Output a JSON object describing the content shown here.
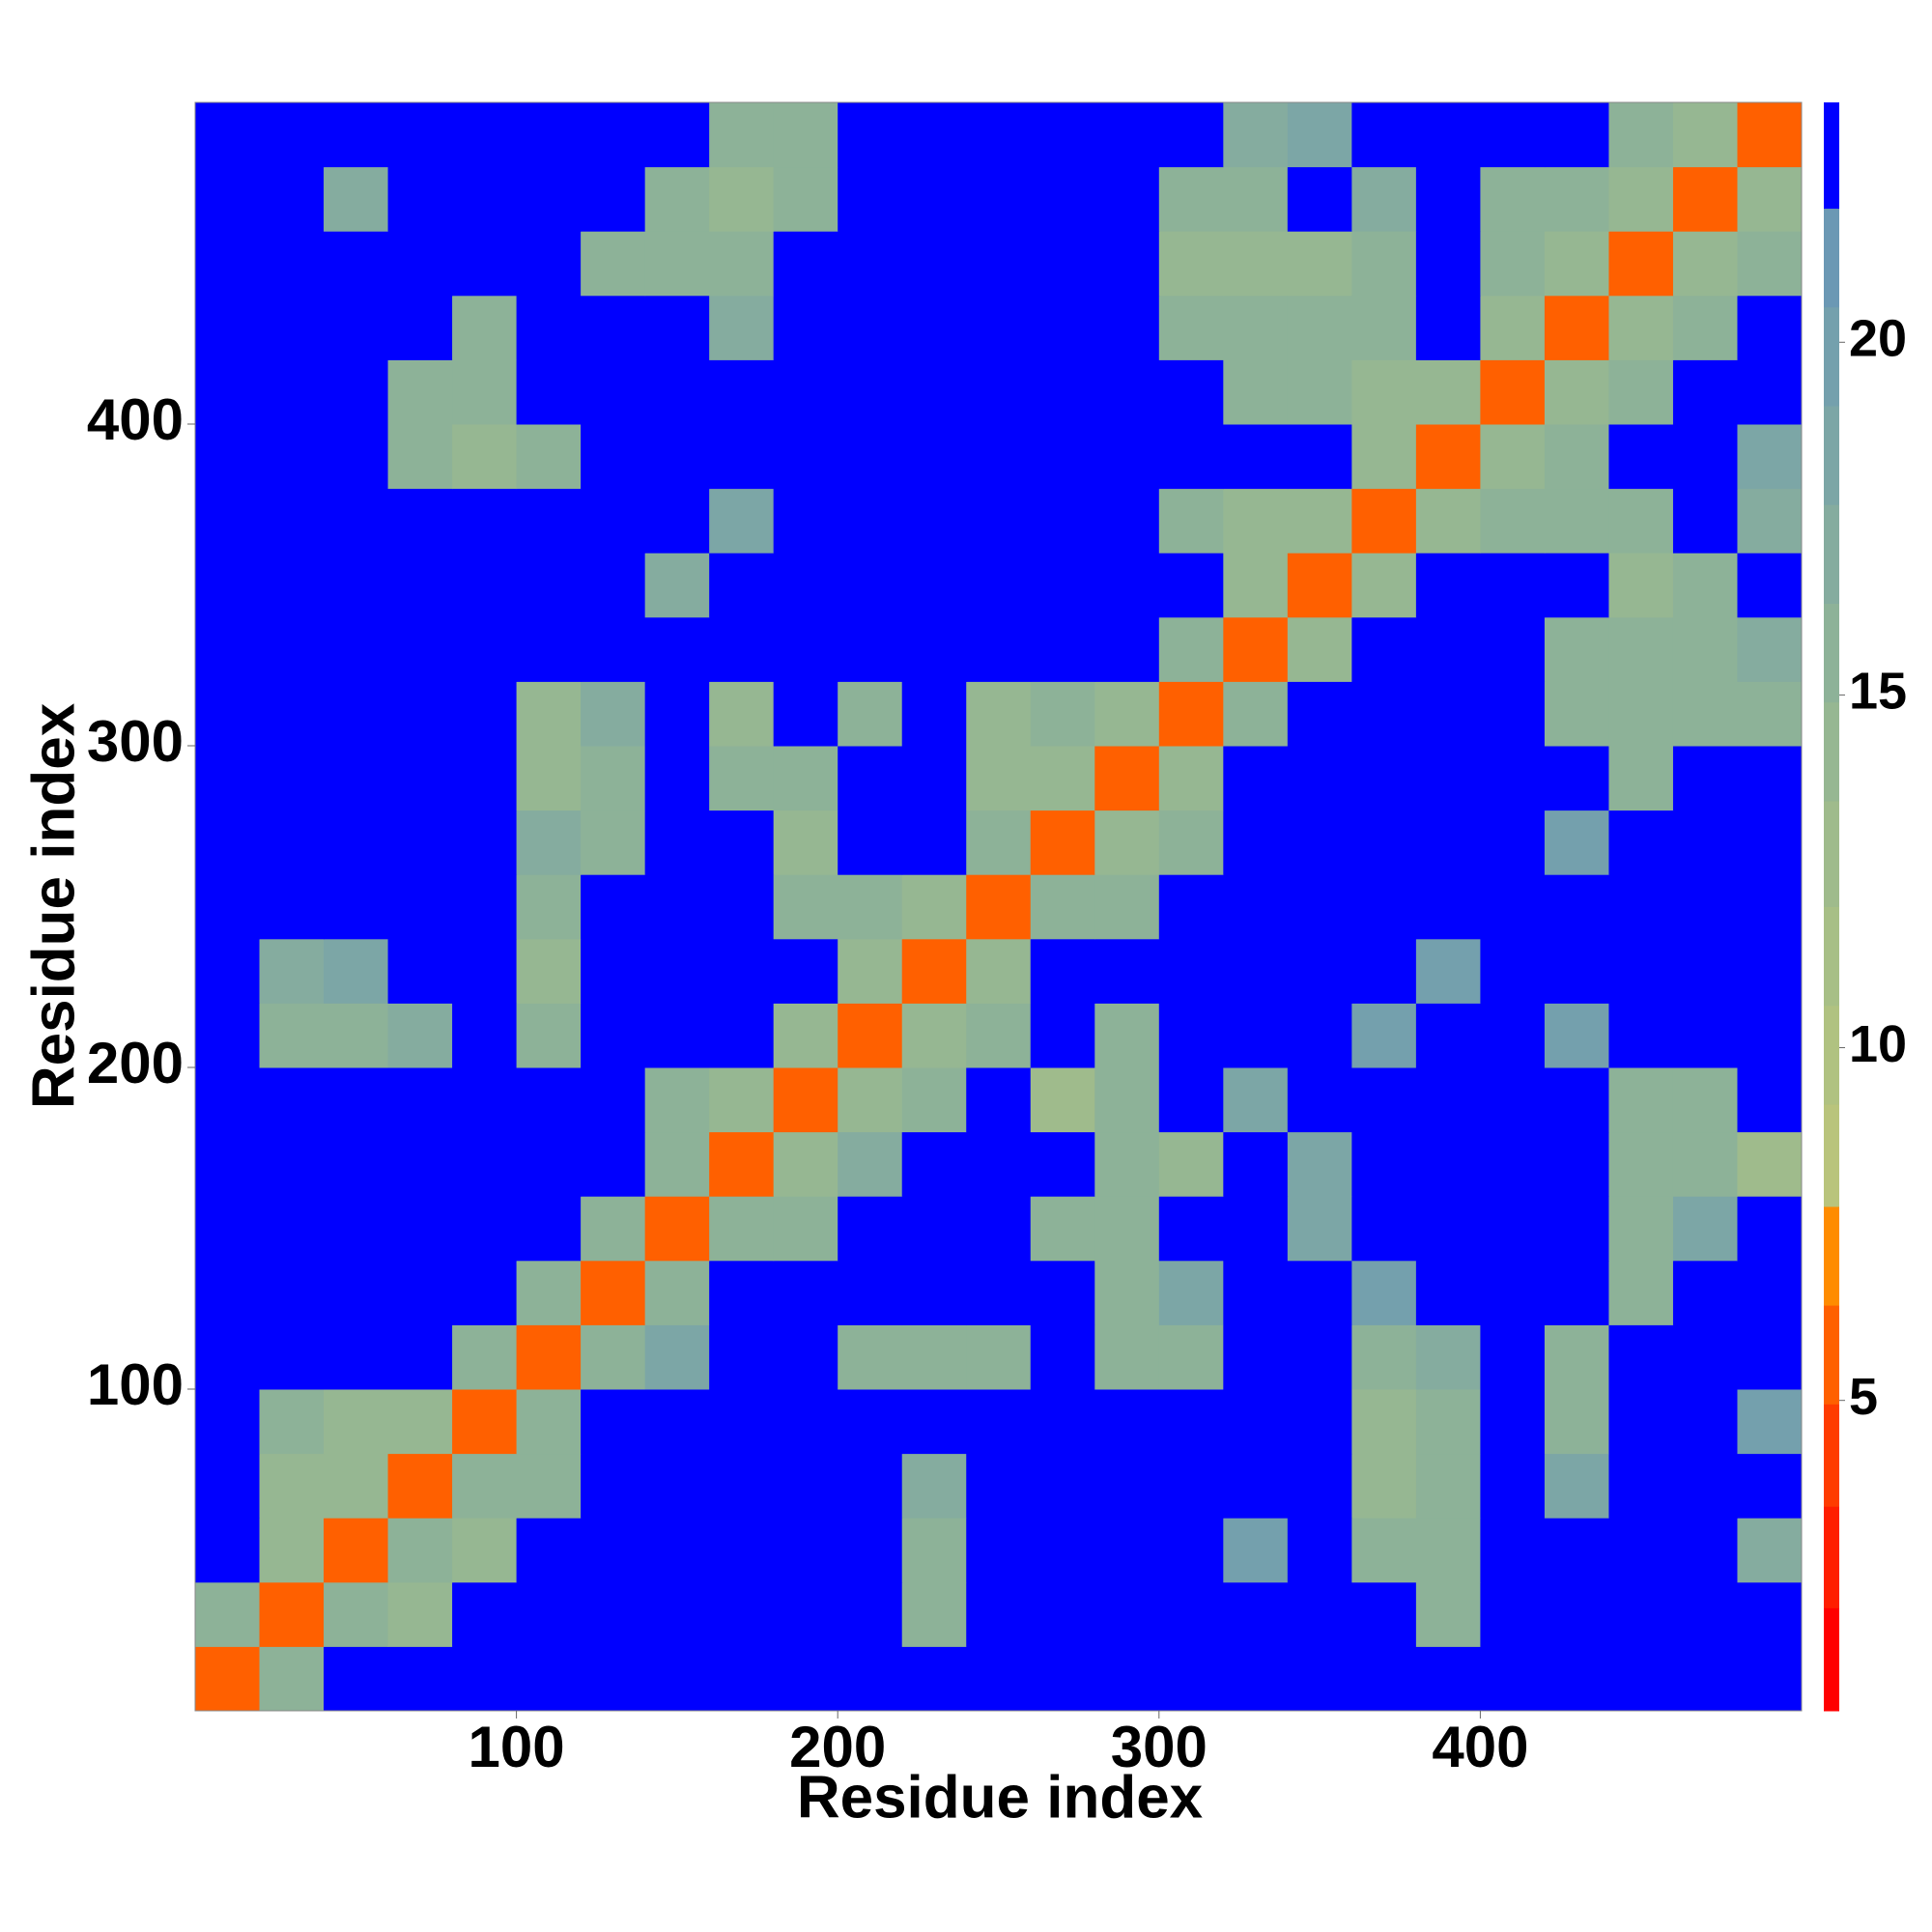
{
  "chart_data": {
    "type": "heatmap",
    "xlabel": "Residue index",
    "ylabel": "Residue index",
    "x_bins": [
      0,
      20,
      40,
      60,
      80,
      100,
      120,
      140,
      160,
      180,
      200,
      220,
      240,
      260,
      280,
      300,
      320,
      340,
      360,
      380,
      400,
      420,
      440,
      460,
      480,
      500
    ],
    "y_bins": [
      0,
      20,
      40,
      60,
      80,
      100,
      120,
      140,
      160,
      180,
      200,
      220,
      240,
      260,
      280,
      300,
      320,
      340,
      360,
      380,
      400,
      420,
      440,
      460,
      480,
      500
    ],
    "xlim": [
      0,
      500
    ],
    "ylim": [
      0,
      500
    ],
    "xticks": [
      100,
      200,
      300,
      400
    ],
    "yticks": [
      100,
      200,
      300,
      400
    ],
    "z": [
      [
        5,
        15,
        23,
        23,
        23,
        23,
        23,
        23,
        23,
        23,
        23,
        23,
        23,
        23,
        23,
        23,
        23,
        23,
        23,
        23,
        23,
        23,
        23,
        23,
        23
      ],
      [
        15,
        5,
        15,
        14,
        23,
        23,
        23,
        23,
        23,
        23,
        23,
        16,
        23,
        23,
        23,
        23,
        23,
        23,
        23,
        16,
        23,
        23,
        23,
        23,
        23
      ],
      [
        23,
        14,
        5,
        15,
        14,
        23,
        23,
        23,
        23,
        23,
        23,
        15,
        23,
        23,
        23,
        23,
        20,
        23,
        16,
        15,
        23,
        23,
        23,
        23,
        17
      ],
      [
        23,
        14,
        14,
        5,
        15,
        16,
        23,
        23,
        23,
        23,
        23,
        17,
        23,
        23,
        23,
        23,
        23,
        23,
        14,
        15,
        23,
        18,
        23,
        23,
        23
      ],
      [
        23,
        15,
        14,
        14,
        5,
        15,
        23,
        23,
        23,
        23,
        23,
        23,
        23,
        23,
        23,
        23,
        23,
        23,
        14,
        15,
        23,
        15,
        23,
        23,
        20
      ],
      [
        23,
        23,
        23,
        23,
        15,
        5,
        15,
        18,
        23,
        23,
        16,
        15,
        16,
        23,
        15,
        16,
        23,
        23,
        15,
        17,
        23,
        15,
        23,
        23,
        23
      ],
      [
        23,
        23,
        23,
        23,
        23,
        15,
        5,
        15,
        23,
        23,
        23,
        23,
        23,
        23,
        15,
        18,
        23,
        23,
        20,
        23,
        23,
        23,
        15,
        23,
        23
      ],
      [
        23,
        23,
        23,
        23,
        23,
        23,
        15,
        5,
        15,
        15,
        23,
        23,
        23,
        15,
        16,
        23,
        23,
        18,
        23,
        23,
        23,
        23,
        15,
        18,
        23
      ],
      [
        23,
        23,
        23,
        23,
        23,
        23,
        23,
        15,
        5,
        14,
        17,
        23,
        23,
        23,
        16,
        14,
        23,
        18,
        23,
        23,
        23,
        23,
        15,
        15,
        13
      ],
      [
        23,
        23,
        23,
        23,
        23,
        23,
        23,
        15,
        14,
        5,
        14,
        16,
        23,
        13,
        15,
        23,
        19,
        23,
        23,
        23,
        23,
        23,
        16,
        16,
        23
      ],
      [
        23,
        16,
        16,
        17,
        23,
        15,
        23,
        23,
        23,
        14,
        5,
        14,
        15,
        23,
        15,
        23,
        23,
        23,
        20,
        23,
        23,
        20,
        23,
        23,
        23
      ],
      [
        23,
        17,
        18,
        23,
        23,
        14,
        23,
        23,
        23,
        23,
        14,
        5,
        14,
        23,
        23,
        23,
        23,
        23,
        23,
        20,
        23,
        23,
        23,
        23,
        23
      ],
      [
        23,
        23,
        23,
        23,
        23,
        15,
        23,
        23,
        23,
        16,
        15,
        14,
        5,
        15,
        15,
        23,
        23,
        23,
        23,
        23,
        23,
        23,
        23,
        23,
        23
      ],
      [
        23,
        23,
        23,
        23,
        23,
        17,
        15,
        23,
        23,
        14,
        23,
        23,
        15,
        5,
        14,
        15,
        23,
        23,
        23,
        23,
        23,
        20,
        23,
        23,
        23
      ],
      [
        23,
        23,
        23,
        23,
        23,
        14,
        15,
        23,
        15,
        15,
        23,
        23,
        14,
        14,
        5,
        14,
        23,
        23,
        23,
        23,
        23,
        23,
        16,
        23,
        23
      ],
      [
        23,
        23,
        23,
        23,
        23,
        14,
        17,
        23,
        14,
        23,
        15,
        23,
        14,
        15,
        14,
        5,
        15,
        23,
        23,
        23,
        23,
        15,
        15,
        15,
        16
      ],
      [
        23,
        23,
        23,
        23,
        23,
        23,
        23,
        23,
        23,
        23,
        23,
        23,
        23,
        23,
        23,
        15,
        5,
        14,
        23,
        23,
        23,
        15,
        15,
        16,
        17
      ],
      [
        23,
        23,
        23,
        23,
        23,
        23,
        23,
        17,
        23,
        23,
        23,
        23,
        23,
        23,
        23,
        23,
        14,
        5,
        14,
        23,
        23,
        23,
        14,
        15,
        23
      ],
      [
        23,
        23,
        23,
        23,
        23,
        23,
        23,
        23,
        19,
        23,
        23,
        23,
        23,
        23,
        23,
        16,
        14,
        14,
        5,
        14,
        15,
        15,
        15,
        23,
        17
      ],
      [
        23,
        23,
        23,
        15,
        14,
        15,
        23,
        23,
        23,
        23,
        23,
        23,
        23,
        23,
        23,
        23,
        23,
        23,
        14,
        5,
        14,
        15,
        23,
        23,
        18
      ],
      [
        23,
        23,
        23,
        16,
        15,
        23,
        23,
        23,
        23,
        23,
        23,
        23,
        23,
        23,
        23,
        23,
        16,
        16,
        14,
        14,
        5,
        14,
        15,
        23,
        23
      ],
      [
        23,
        23,
        23,
        23,
        15,
        23,
        23,
        23,
        17,
        23,
        23,
        23,
        23,
        23,
        23,
        15,
        15,
        15,
        15,
        23,
        14,
        5,
        14,
        16,
        23
      ],
      [
        23,
        23,
        23,
        23,
        23,
        23,
        15,
        15,
        15,
        23,
        23,
        23,
        23,
        23,
        23,
        14,
        14,
        14,
        16,
        23,
        15,
        14,
        5,
        14,
        15
      ],
      [
        23,
        23,
        17,
        23,
        23,
        23,
        23,
        15,
        14,
        15,
        23,
        23,
        23,
        23,
        23,
        15,
        15,
        23,
        17,
        23,
        16,
        15,
        14,
        5,
        14
      ],
      [
        23,
        23,
        23,
        23,
        23,
        23,
        23,
        23,
        15,
        16,
        23,
        23,
        23,
        23,
        23,
        23,
        17,
        19,
        23,
        23,
        23,
        23,
        16,
        14,
        5
      ]
    ],
    "colorbar": {
      "lim": [
        0.6,
        23.4
      ],
      "ticks": [
        5,
        10,
        15,
        20
      ],
      "levels": [
        0.6,
        2.06,
        3.5,
        4.95,
        6.35,
        7.75,
        9.2,
        10.6,
        12,
        13.5,
        14.9,
        16.3,
        17.7,
        19.1,
        20.5,
        21.9,
        23.4
      ],
      "colors": [
        "#ff0000",
        "#ff1e00",
        "#ff3c00",
        "#ff6000",
        "#ff8c00",
        "#b9c47c",
        "#b0c281",
        "#a7bf86",
        "#9fbb8c",
        "#96b792",
        "#8db298",
        "#85ac9f",
        "#7ca6a6",
        "#74a0ad",
        "#6b98b4",
        "#0000ff"
      ]
    }
  }
}
